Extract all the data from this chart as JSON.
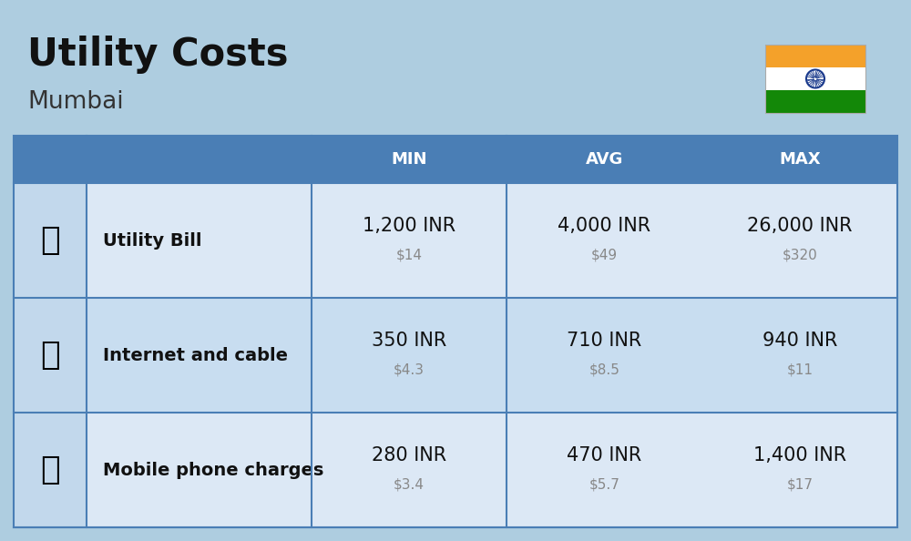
{
  "title": "Utility Costs",
  "subtitle": "Mumbai",
  "background_color": "#aecde0",
  "header_bg_color": "#4a7eb5",
  "header_text_color": "#ffffff",
  "row_bg_color_1": "#dce8f5",
  "row_bg_color_2": "#c8ddf0",
  "col_divider_color": "#4a7eb5",
  "icon_col_bg": "#c2d8ec",
  "columns": [
    "MIN",
    "AVG",
    "MAX"
  ],
  "rows": [
    {
      "label": "Utility Bill",
      "min_inr": "1,200 INR",
      "min_usd": "$14",
      "avg_inr": "4,000 INR",
      "avg_usd": "$49",
      "max_inr": "26,000 INR",
      "max_usd": "$320"
    },
    {
      "label": "Internet and cable",
      "min_inr": "350 INR",
      "min_usd": "$4.3",
      "avg_inr": "710 INR",
      "avg_usd": "$8.5",
      "max_inr": "940 INR",
      "max_usd": "$11"
    },
    {
      "label": "Mobile phone charges",
      "min_inr": "280 INR",
      "min_usd": "$3.4",
      "avg_inr": "470 INR",
      "avg_usd": "$5.7",
      "max_inr": "1,400 INR",
      "max_usd": "$17"
    }
  ],
  "flag_colors": [
    "#f4a12a",
    "#ffffff",
    "#138808"
  ],
  "flag_ashoka_color": "#1a3a8c",
  "title_fontsize": 30,
  "subtitle_fontsize": 19,
  "header_fontsize": 13,
  "label_fontsize": 14,
  "value_fontsize": 15,
  "usd_fontsize": 11,
  "usd_color": "#888888"
}
